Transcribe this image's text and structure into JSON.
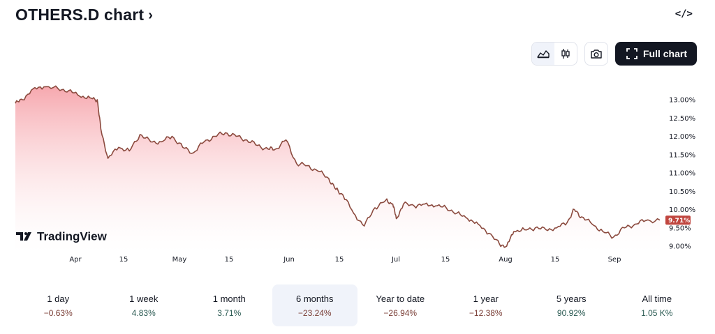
{
  "header": {
    "title": "OTHERS.D chart",
    "chevron": "›",
    "embed_icon": "</>"
  },
  "toolbar": {
    "line_style": "area-chart-icon",
    "candle_style": "candlestick-icon",
    "snapshot": "camera-icon",
    "full_chart_label": "Full chart"
  },
  "brand": {
    "logo_text": "TradingView"
  },
  "chart_data": {
    "type": "area",
    "title": "",
    "ylabel": "",
    "xlabel": "",
    "y_unit": "%",
    "y_ticks": [
      "13.00%",
      "12.50%",
      "12.00%",
      "11.50%",
      "11.00%",
      "10.50%",
      "10.00%",
      "9.50%",
      "9.00%"
    ],
    "ylim": [
      8.9,
      13.5
    ],
    "x_ticks": [
      "Apr",
      "15",
      "May",
      "15",
      "Jun",
      "15",
      "Jul",
      "15",
      "Aug",
      "15",
      "Sep"
    ],
    "current_value": 9.71,
    "current_label": "9.71%",
    "colors": {
      "line": "#8b4a3e",
      "fill_top": "#f6a3aa",
      "fill_bottom": "#ffffff",
      "badge": "#c0463f"
    },
    "series": [
      {
        "x": [
          "2024-03-20",
          "2024-03-22",
          "2024-03-25",
          "2024-03-28",
          "2024-04-01",
          "2024-04-04",
          "2024-04-07",
          "2024-04-10",
          "2024-04-12",
          "2024-04-13",
          "2024-04-15",
          "2024-04-18",
          "2024-04-21",
          "2024-04-24",
          "2024-04-27",
          "2024-04-30",
          "2024-05-03",
          "2024-05-06",
          "2024-05-09",
          "2024-05-12",
          "2024-05-15",
          "2024-05-18",
          "2024-05-21",
          "2024-05-24",
          "2024-05-27",
          "2024-05-30",
          "2024-06-01",
          "2024-06-04",
          "2024-06-07",
          "2024-06-10",
          "2024-06-13",
          "2024-06-16",
          "2024-06-18",
          "2024-06-20",
          "2024-06-23",
          "2024-06-26",
          "2024-06-29",
          "2024-07-02",
          "2024-07-04",
          "2024-07-05",
          "2024-07-07",
          "2024-07-10",
          "2024-07-13",
          "2024-07-16",
          "2024-07-19",
          "2024-07-22",
          "2024-07-25",
          "2024-07-28",
          "2024-07-31",
          "2024-08-03",
          "2024-08-05",
          "2024-08-07",
          "2024-08-10",
          "2024-08-13",
          "2024-08-16",
          "2024-08-19",
          "2024-08-22",
          "2024-08-24",
          "2024-08-26",
          "2024-08-29",
          "2024-09-01",
          "2024-09-04",
          "2024-09-07",
          "2024-09-10",
          "2024-09-13",
          "2024-09-17"
        ],
        "values": [
          12.9,
          13.0,
          13.3,
          13.35,
          13.3,
          13.25,
          13.1,
          13.05,
          13.0,
          12.2,
          11.4,
          11.7,
          11.6,
          12.05,
          11.85,
          11.85,
          12.0,
          11.7,
          11.55,
          11.85,
          12.0,
          12.1,
          12.0,
          11.9,
          11.75,
          11.65,
          11.65,
          11.9,
          11.25,
          11.2,
          11.05,
          10.85,
          10.55,
          10.4,
          9.9,
          9.55,
          10.05,
          10.25,
          10.15,
          9.75,
          10.15,
          10.1,
          10.15,
          10.1,
          10.05,
          9.9,
          9.75,
          9.6,
          9.35,
          9.05,
          9.0,
          9.4,
          9.45,
          9.5,
          9.45,
          9.5,
          9.65,
          10.0,
          9.8,
          9.6,
          9.4,
          9.25,
          9.5,
          9.6,
          9.7,
          9.71
        ]
      }
    ]
  },
  "periods": [
    {
      "label": "1 day",
      "change": "−0.63%",
      "sign": "neg"
    },
    {
      "label": "1 week",
      "change": "4.83%",
      "sign": "pos"
    },
    {
      "label": "1 month",
      "change": "3.71%",
      "sign": "pos"
    },
    {
      "label": "6 months",
      "change": "−23.24%",
      "sign": "neg",
      "active": true
    },
    {
      "label": "Year to date",
      "change": "−26.94%",
      "sign": "neg"
    },
    {
      "label": "1 year",
      "change": "−12.38%",
      "sign": "neg"
    },
    {
      "label": "5 years",
      "change": "90.92%",
      "sign": "pos"
    },
    {
      "label": "All time",
      "change": "1.05 K%",
      "sign": "pos"
    }
  ]
}
